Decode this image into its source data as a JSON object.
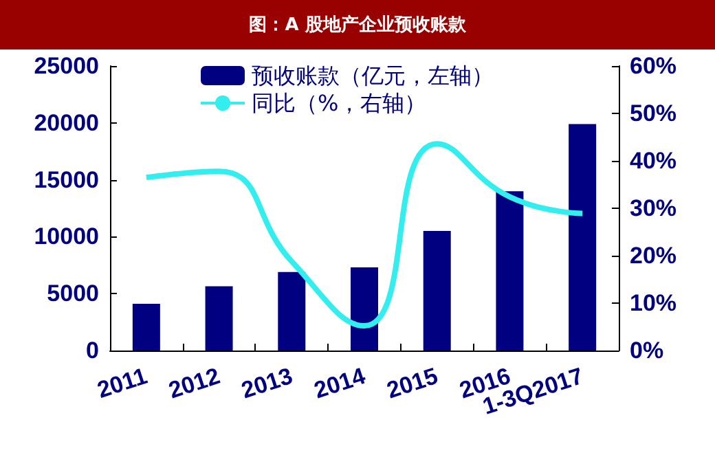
{
  "chart_data": {
    "type": "bar",
    "title": "图：A 股地产企业预收账款",
    "categories": [
      "2011",
      "2012",
      "2013",
      "2014",
      "2015",
      "2016",
      "1-3Q2017"
    ],
    "series": [
      {
        "name": "预收账款（亿元，左轴）",
        "color": "#000080",
        "values": [
          4100,
          5650,
          6900,
          7300,
          10500,
          14000,
          19900
        ]
      },
      {
        "name": "同比（%，右轴）",
        "type": "line",
        "axis": "y2",
        "color": "#33eeee",
        "values": [
          36.5,
          37.8,
          18.8,
          5.2,
          43.6,
          32.4,
          28.9
        ]
      }
    ],
    "ylim": [
      0,
      25000
    ],
    "yticks": [
      0,
      5000,
      10000,
      15000,
      20000,
      25000
    ],
    "y2lim": [
      0,
      60
    ],
    "y2ticks": [
      {
        "value": 0,
        "label": "0%"
      },
      {
        "value": 10,
        "label": "10%"
      },
      {
        "value": 20,
        "label": "20%"
      },
      {
        "value": 30,
        "label": "30%"
      },
      {
        "value": 40,
        "label": "40%"
      },
      {
        "value": 50,
        "label": "50%"
      },
      {
        "value": 60,
        "label": "60%"
      }
    ],
    "legend": "top",
    "grid": false,
    "marker": "none"
  }
}
